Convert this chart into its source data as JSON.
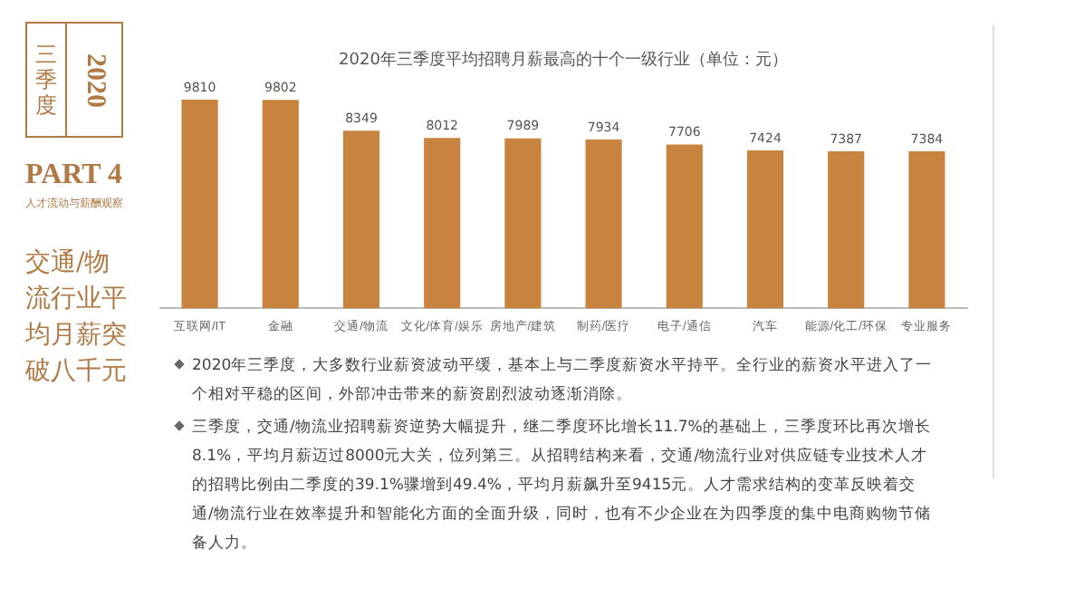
{
  "chart_data": {
    "type": "bar",
    "title": "2020年三季度平均招聘月薪最高的十个一级行业（单位：元）",
    "categories": [
      "互联网/IT",
      "金融",
      "交通/物流",
      "文化/体育/娱乐",
      "房地产/建筑",
      "制药/医疗",
      "电子/通信",
      "汽车",
      "能源/化工/环保",
      "专业服务"
    ],
    "values": [
      9810,
      9802,
      8349,
      8012,
      7989,
      7934,
      7706,
      7424,
      7387,
      7384
    ],
    "color": "#c8843f",
    "data_labels": true,
    "grid": false,
    "legend": false,
    "tick_labels": "x",
    "annotations": [
      "2020",
      "三季度",
      "PART 4",
      "人才流动与薪酬观察",
      "交通/物流行业平均月薪突破八千元",
      "2020年三季度，大多数行业薪资波动平缓，基本上与二季度薪资水平持平。全行业的薪资水平进入了一个相对平稳的区间，外部冲击带来的薪资剧烈波动逐渐消除。",
      "三季度，交通/物流业招聘薪资逆势大幅提升，继二季度环比增长11.7%的基础上，三季度环比再次增长8.1%，平均月薪迈过8000元大关，位列第三。从招聘结构来看，交通/物流行业对供应链专业技术人才的招聘比例由二季度的39.1%骤增到49.4%，平均月薪飙升至9415元。人才需求结构的变革反映着交通/物流行业在效率提升和智能化方面的全面升级，同时，也有不少企业在为四季度的集中电商购物节储备人力。"
    ]
  }
}
